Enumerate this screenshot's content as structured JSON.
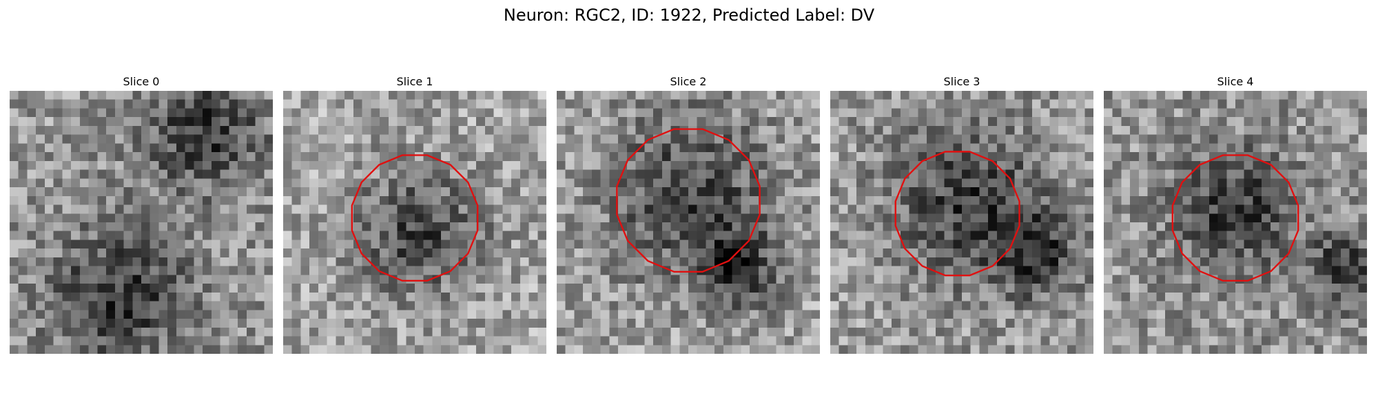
{
  "figure": {
    "title": "Neuron: RGC2, ID: 1922, Predicted Label: DV",
    "contour_color": "#e01010",
    "colormap": "gray_r"
  },
  "panels": [
    {
      "title": "Slice 0",
      "has_contour": false,
      "dark_blobs": [
        [
          0.74,
          0.16,
          0.16
        ],
        [
          0.42,
          0.78,
          0.18
        ]
      ],
      "mean_gray": 150
    },
    {
      "title": "Slice 1",
      "has_contour": true,
      "dark_blobs": [
        [
          0.52,
          0.54,
          0.17
        ]
      ],
      "mean_gray": 165
    },
    {
      "title": "Slice 2",
      "has_contour": true,
      "dark_blobs": [
        [
          0.5,
          0.4,
          0.22
        ],
        [
          0.7,
          0.68,
          0.1
        ]
      ],
      "mean_gray": 160
    },
    {
      "title": "Slice 3",
      "has_contour": true,
      "dark_blobs": [
        [
          0.52,
          0.42,
          0.2
        ],
        [
          0.78,
          0.62,
          0.12
        ]
      ],
      "mean_gray": 155
    },
    {
      "title": "Slice 4",
      "has_contour": true,
      "dark_blobs": [
        [
          0.5,
          0.45,
          0.16
        ],
        [
          0.92,
          0.68,
          0.1
        ]
      ],
      "mean_gray": 150
    }
  ]
}
